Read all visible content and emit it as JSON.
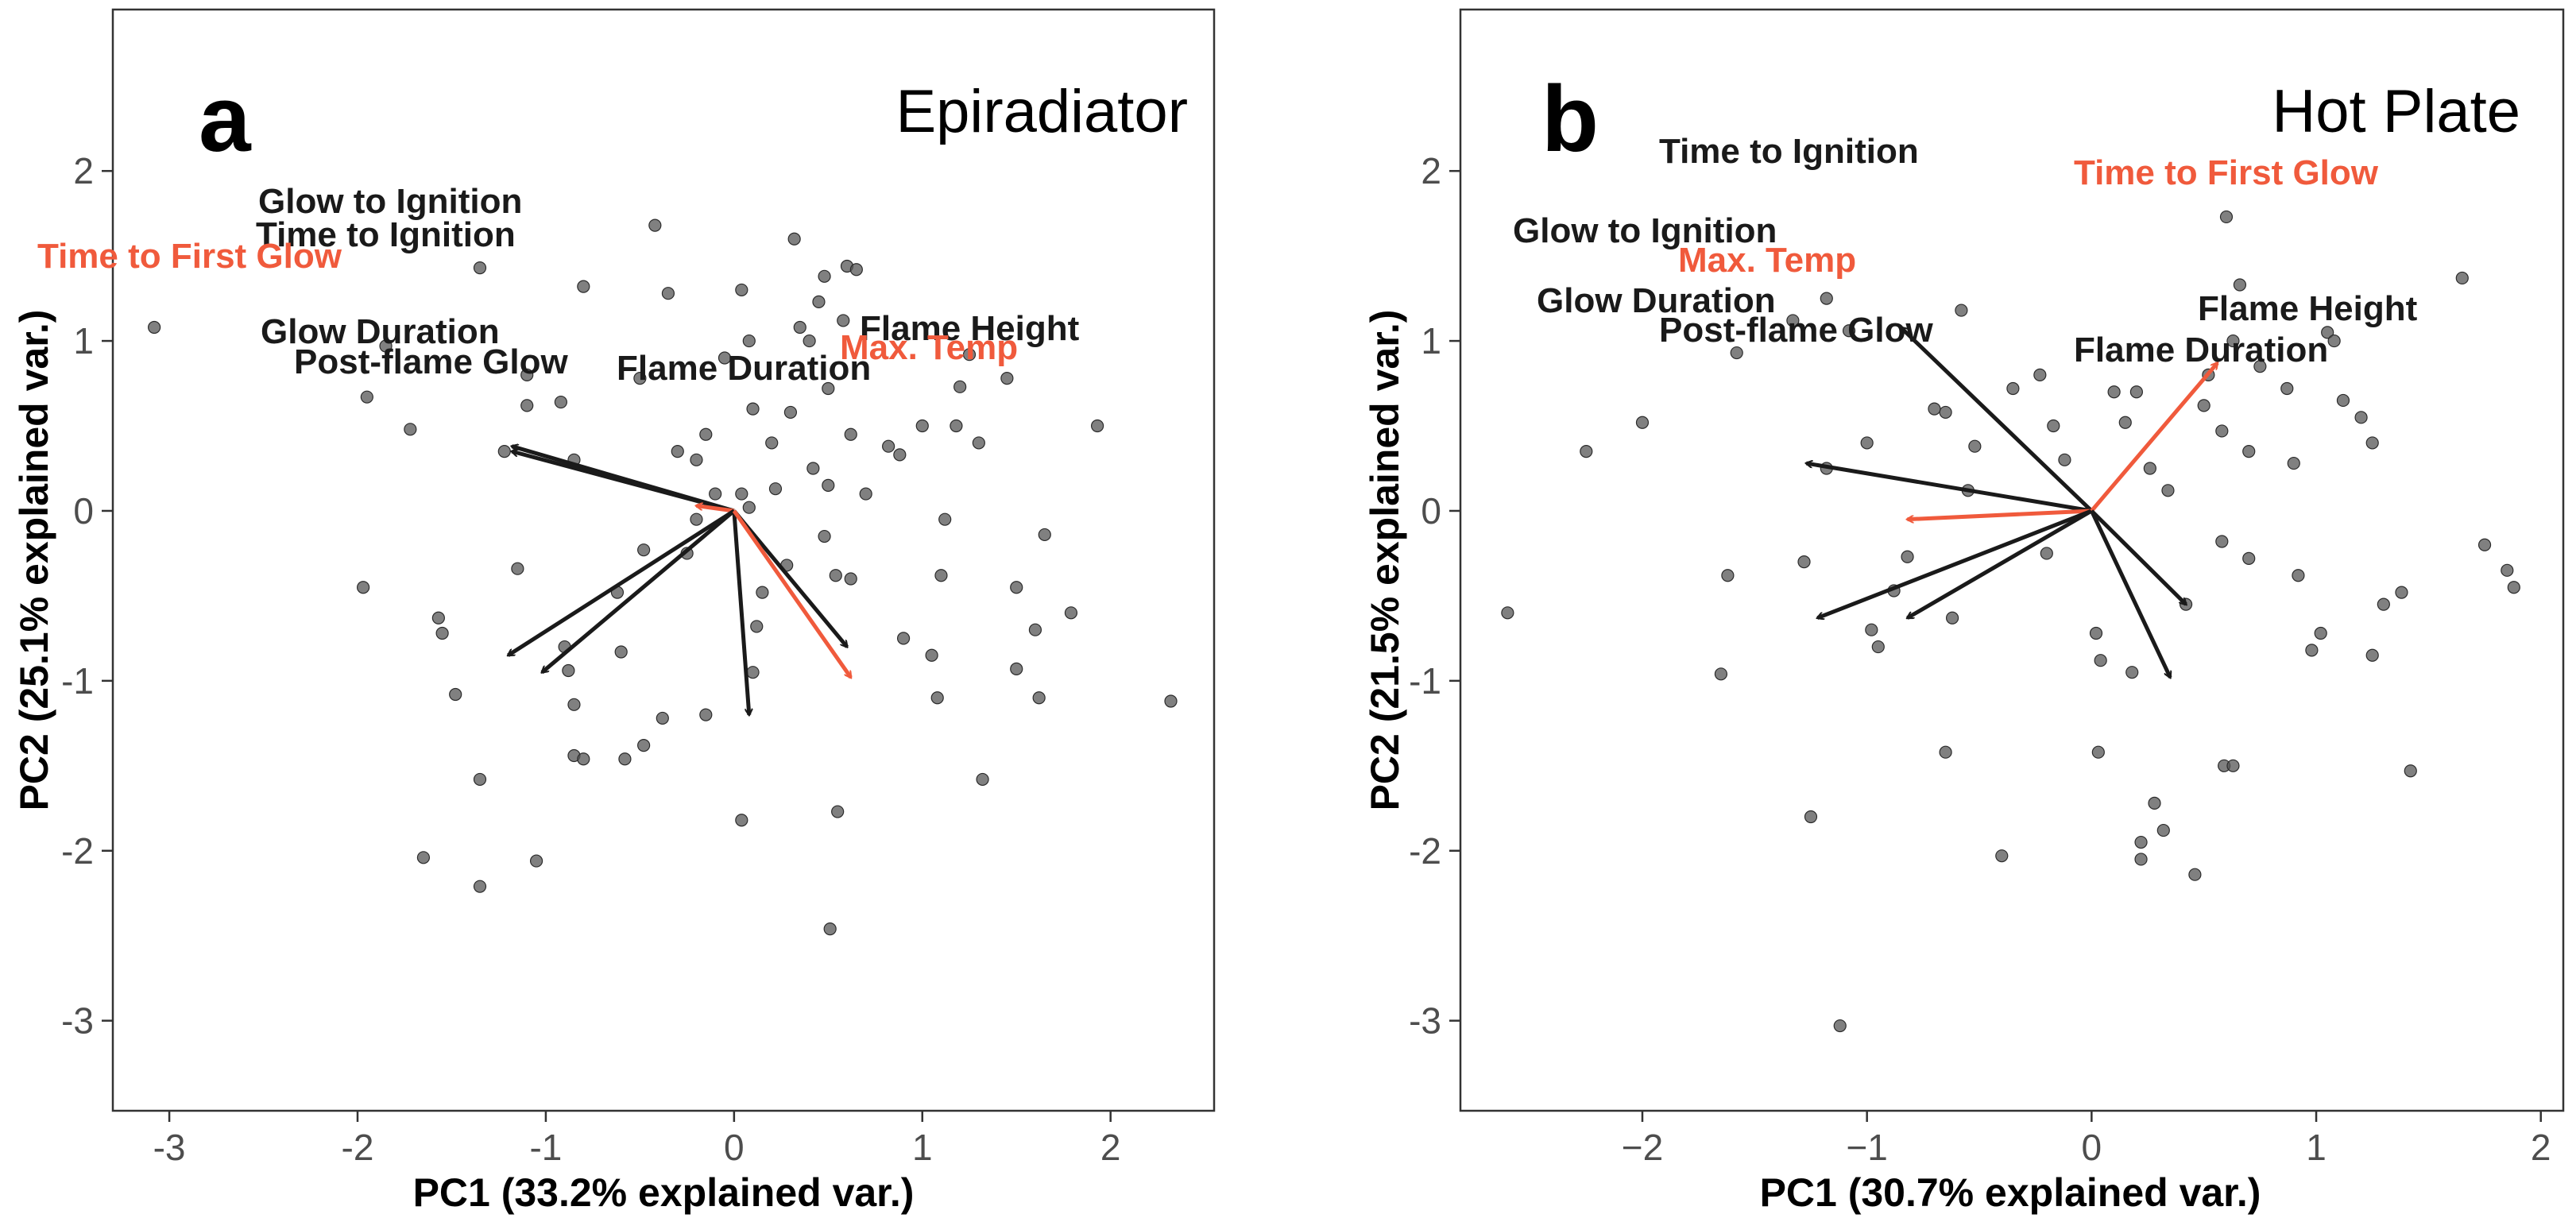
{
  "colors": {
    "black_arrow": "#1a1a1a",
    "red_arrow": "#f05a3c",
    "point_fill": "#555555",
    "point_alpha": 0.75
  },
  "chart_data": [
    {
      "type": "scatter",
      "panel_letter": "a",
      "title": "Epiradiator",
      "xlabel": "PC1 (33.2% explained var.)",
      "ylabel": "PC2 (25.1% explained var.)",
      "xlim": [
        -3.3,
        2.55
      ],
      "ylim": [
        -3.53,
        2.95
      ],
      "xticks": [
        -3,
        -2,
        -1,
        0,
        1,
        2
      ],
      "yticks": [
        -3,
        -2,
        -1,
        0,
        1,
        2
      ],
      "xtick_labels": [
        "-3",
        "-2",
        "-1",
        "0",
        "1",
        "2"
      ],
      "ytick_labels": [
        "-3",
        "-2",
        "-1",
        "0",
        "1",
        "2"
      ],
      "grid": false,
      "points": [
        [
          -3.08,
          1.08
        ],
        [
          -1.85,
          0.97
        ],
        [
          -1.95,
          0.67
        ],
        [
          -1.35,
          1.43
        ],
        [
          -1.72,
          0.48
        ],
        [
          -1.97,
          -0.45
        ],
        [
          -1.57,
          -0.63
        ],
        [
          -1.55,
          -0.72
        ],
        [
          -1.48,
          -1.08
        ],
        [
          -1.65,
          -2.04
        ],
        [
          -1.35,
          -2.21
        ],
        [
          -1.35,
          -1.58
        ],
        [
          -1.05,
          -2.06
        ],
        [
          -0.85,
          -1.44
        ],
        [
          -0.8,
          -1.46
        ],
        [
          -0.85,
          -1.14
        ],
        [
          -0.9,
          -0.8
        ],
        [
          -0.88,
          -0.94
        ],
        [
          -1.15,
          -0.34
        ],
        [
          -1.22,
          0.35
        ],
        [
          -1.1,
          0.62
        ],
        [
          -1.1,
          0.8
        ],
        [
          -0.92,
          0.64
        ],
        [
          -0.85,
          0.3
        ],
        [
          -0.8,
          1.32
        ],
        [
          -0.5,
          0.78
        ],
        [
          -0.42,
          1.68
        ],
        [
          -0.35,
          1.28
        ],
        [
          -0.3,
          0.35
        ],
        [
          -0.25,
          -0.25
        ],
        [
          -0.15,
          0.45
        ],
        [
          -0.15,
          -1.2
        ],
        [
          -0.38,
          -1.22
        ],
        [
          -0.48,
          -1.38
        ],
        [
          -0.58,
          -1.46
        ],
        [
          -0.62,
          -0.48
        ],
        [
          -0.6,
          -0.83
        ],
        [
          -0.48,
          -0.23
        ],
        [
          -0.2,
          0.3
        ],
        [
          -0.1,
          0.1
        ],
        [
          -0.2,
          -0.05
        ],
        [
          -0.05,
          0.9
        ],
        [
          0.04,
          1.3
        ],
        [
          0.04,
          0.1
        ],
        [
          0.08,
          0.02
        ],
        [
          0.08,
          1.0
        ],
        [
          0.1,
          0.6
        ],
        [
          0.15,
          -0.48
        ],
        [
          0.12,
          -0.68
        ],
        [
          0.2,
          0.4
        ],
        [
          0.22,
          0.13
        ],
        [
          0.28,
          -0.32
        ],
        [
          0.3,
          0.58
        ],
        [
          0.32,
          1.6
        ],
        [
          0.35,
          1.08
        ],
        [
          0.4,
          1.0
        ],
        [
          0.42,
          0.25
        ],
        [
          0.45,
          1.23
        ],
        [
          0.48,
          1.38
        ],
        [
          0.48,
          -0.15
        ],
        [
          0.5,
          0.72
        ],
        [
          0.5,
          0.15
        ],
        [
          0.54,
          -0.38
        ],
        [
          0.58,
          1.12
        ],
        [
          0.6,
          1.44
        ],
        [
          0.62,
          0.45
        ],
        [
          0.65,
          1.42
        ],
        [
          0.7,
          0.1
        ],
        [
          0.82,
          0.38
        ],
        [
          0.88,
          0.33
        ],
        [
          1.0,
          0.5
        ],
        [
          1.05,
          -0.85
        ],
        [
          1.08,
          -1.1
        ],
        [
          1.1,
          -0.38
        ],
        [
          1.18,
          0.5
        ],
        [
          1.2,
          0.73
        ],
        [
          1.25,
          0.92
        ],
        [
          1.3,
          0.4
        ],
        [
          1.45,
          0.78
        ],
        [
          1.5,
          -0.45
        ],
        [
          1.5,
          -0.93
        ],
        [
          1.62,
          -1.1
        ],
        [
          1.65,
          -0.14
        ],
        [
          1.79,
          -0.6
        ],
        [
          1.93,
          0.5
        ],
        [
          2.32,
          -1.12
        ],
        [
          1.32,
          -1.58
        ],
        [
          0.55,
          -1.77
        ],
        [
          0.51,
          -2.46
        ],
        [
          0.04,
          -1.82
        ],
        [
          0.62,
          -0.4
        ],
        [
          0.9,
          -0.75
        ],
        [
          0.1,
          -0.95
        ],
        [
          1.12,
          -0.05
        ],
        [
          1.6,
          -0.7
        ]
      ],
      "loadings": [
        {
          "name": "Glow to Ignition",
          "x": -1.18,
          "y": 0.38,
          "color": "black"
        },
        {
          "name": "Time to Ignition",
          "x": -1.18,
          "y": 0.35,
          "color": "black"
        },
        {
          "name": "Time to First Glow",
          "x": -0.2,
          "y": 0.03,
          "color": "red"
        },
        {
          "name": "Glow Duration",
          "x": -1.2,
          "y": -0.85,
          "color": "black"
        },
        {
          "name": "Post-flame Glow",
          "x": -1.02,
          "y": -0.95,
          "color": "black"
        },
        {
          "name": "Flame Duration",
          "x": 0.08,
          "y": -1.2,
          "color": "black"
        },
        {
          "name": "Flame Height",
          "x": 0.6,
          "y": -0.8,
          "color": "black"
        },
        {
          "name": "Max. Temp",
          "x": 0.62,
          "y": -0.98,
          "color": "red"
        }
      ]
    },
    {
      "type": "scatter",
      "panel_letter": "b",
      "title": "Hot Plate",
      "xlabel": "PC1 (30.7% explained var.)",
      "ylabel": "PC2 (21.5% explained var.)",
      "xlim": [
        -2.81,
        2.1
      ],
      "ylim": [
        -3.53,
        2.95
      ],
      "xticks": [
        -2,
        -1,
        0,
        1,
        2
      ],
      "yticks": [
        -3,
        -2,
        -1,
        0,
        1,
        2
      ],
      "xtick_labels": [
        "−2",
        "−1",
        "0",
        "1",
        "2"
      ],
      "ytick_labels": [
        "-3",
        "-2",
        "-1",
        "0",
        "1",
        "2"
      ],
      "grid": false,
      "points": [
        [
          -2.6,
          -0.6
        ],
        [
          -2.25,
          0.35
        ],
        [
          -1.65,
          -0.96
        ],
        [
          -1.58,
          0.93
        ],
        [
          -1.33,
          1.12
        ],
        [
          -1.25,
          -1.8
        ],
        [
          -1.28,
          -0.3
        ],
        [
          -1.18,
          1.25
        ],
        [
          -1.08,
          1.06
        ],
        [
          -1.18,
          0.25
        ],
        [
          -1.0,
          0.4
        ],
        [
          -0.98,
          -0.7
        ],
        [
          -0.88,
          -0.47
        ],
        [
          -0.65,
          -1.42
        ],
        [
          -0.65,
          0.58
        ],
        [
          -0.62,
          -0.63
        ],
        [
          -0.58,
          1.18
        ],
        [
          -0.55,
          0.12
        ],
        [
          -0.52,
          0.38
        ],
        [
          -0.4,
          -2.03
        ],
        [
          -0.35,
          0.72
        ],
        [
          -0.23,
          0.8
        ],
        [
          -0.17,
          0.5
        ],
        [
          -0.12,
          0.3
        ],
        [
          -1.12,
          -3.03
        ],
        [
          -0.82,
          -0.27
        ],
        [
          -0.7,
          0.6
        ],
        [
          -0.2,
          -0.25
        ],
        [
          0.02,
          -0.72
        ],
        [
          0.04,
          -0.88
        ],
        [
          0.03,
          -1.42
        ],
        [
          0.1,
          0.7
        ],
        [
          0.15,
          0.52
        ],
        [
          0.2,
          0.7
        ],
        [
          0.18,
          -0.95
        ],
        [
          0.22,
          -1.95
        ],
        [
          0.22,
          -2.05
        ],
        [
          0.26,
          0.25
        ],
        [
          0.28,
          -1.72
        ],
        [
          0.32,
          -1.88
        ],
        [
          0.34,
          0.12
        ],
        [
          0.46,
          -2.14
        ],
        [
          0.5,
          0.62
        ],
        [
          0.52,
          0.8
        ],
        [
          0.58,
          0.47
        ],
        [
          0.58,
          -0.18
        ],
        [
          0.59,
          -1.5
        ],
        [
          0.6,
          1.73
        ],
        [
          0.63,
          1.0
        ],
        [
          0.63,
          -1.5
        ],
        [
          0.66,
          1.33
        ],
        [
          0.7,
          0.35
        ],
        [
          0.75,
          0.85
        ],
        [
          0.87,
          0.72
        ],
        [
          0.9,
          0.28
        ],
        [
          0.92,
          -0.38
        ],
        [
          0.98,
          -0.82
        ],
        [
          1.02,
          -0.72
        ],
        [
          1.05,
          1.05
        ],
        [
          1.08,
          1.0
        ],
        [
          1.12,
          0.65
        ],
        [
          1.2,
          0.55
        ],
        [
          1.25,
          0.4
        ],
        [
          1.25,
          -0.85
        ],
        [
          1.3,
          -0.55
        ],
        [
          1.38,
          -0.48
        ],
        [
          1.42,
          -1.53
        ],
        [
          1.65,
          1.37
        ],
        [
          1.75,
          -0.2
        ],
        [
          1.85,
          -0.35
        ],
        [
          1.88,
          -0.45
        ],
        [
          0.7,
          -0.28
        ],
        [
          0.42,
          -0.55
        ],
        [
          -1.62,
          -0.38
        ],
        [
          -2.0,
          0.52
        ],
        [
          -0.95,
          -0.8
        ]
      ],
      "loadings": [
        {
          "name": "Time to Ignition",
          "x": -0.85,
          "y": 1.08,
          "color": "black"
        },
        {
          "name": "Glow to Ignition",
          "x": -1.27,
          "y": 0.28,
          "color": "black"
        },
        {
          "name": "Max. Temp",
          "x": -0.82,
          "y": -0.05,
          "color": "red"
        },
        {
          "name": "Glow Duration",
          "x": -1.22,
          "y": -0.63,
          "color": "black"
        },
        {
          "name": "Post-flame Glow",
          "x": -0.82,
          "y": -0.63,
          "color": "black"
        },
        {
          "name": "Time to First Glow",
          "x": 0.56,
          "y": 0.87,
          "color": "red"
        },
        {
          "name": "Flame Height",
          "x": 0.42,
          "y": -0.55,
          "color": "black"
        },
        {
          "name": "Flame Duration",
          "x": 0.35,
          "y": -0.98,
          "color": "black"
        }
      ]
    }
  ]
}
